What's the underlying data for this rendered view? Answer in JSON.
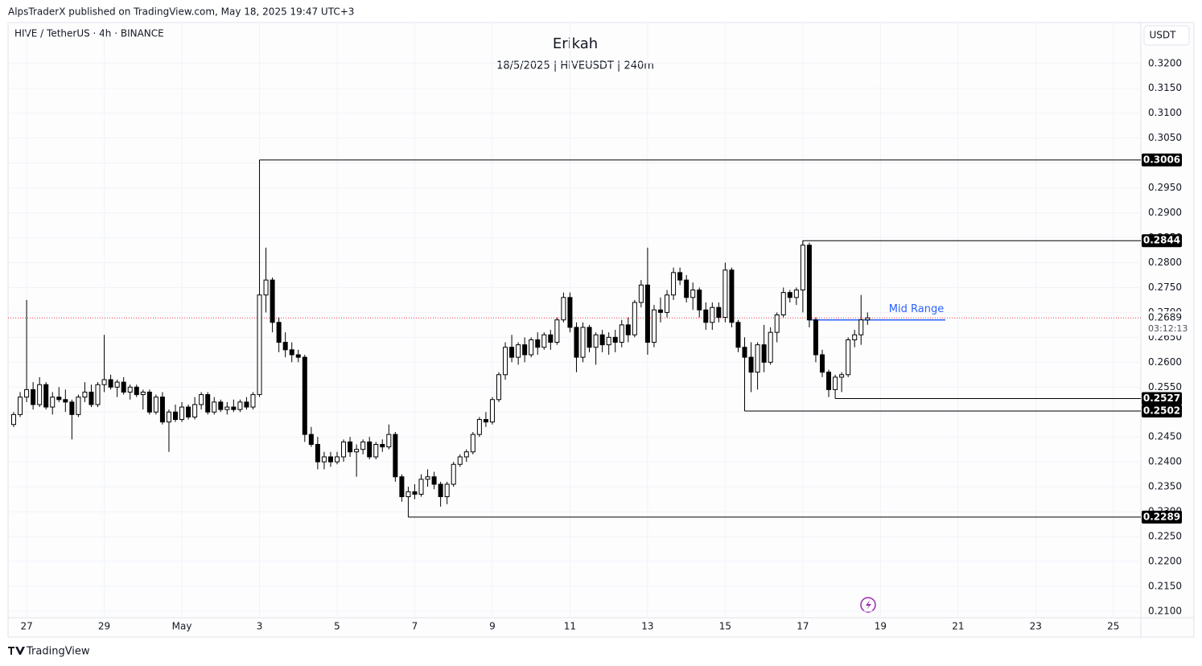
{
  "header": {
    "publisher": "AlpsTraderX published on TradingView.com, May 18, 2025 19:47 UTC+3",
    "brand": "TradingView"
  },
  "chart_data": {
    "type": "candlestick",
    "symbol": "HIVE / TetherUS · 4h · BINANCE",
    "title": "Erikah",
    "subtitle": "18/5/2025 | HIVEUSDT | 240m",
    "currency": "USDT",
    "up_color": "#ffffff",
    "down_color": "#000000",
    "outline_color": "#000000",
    "open": [
      0.2475,
      0.2495,
      0.253,
      0.2545,
      0.2515,
      0.2555,
      0.251,
      0.253,
      0.2525,
      0.252,
      0.2495,
      0.253,
      0.254,
      0.2515,
      0.2555,
      0.2565,
      0.255,
      0.256,
      0.254,
      0.255,
      0.2535,
      0.254,
      0.25,
      0.253,
      0.248,
      0.25,
      0.2485,
      0.251,
      0.249,
      0.2515,
      0.2535,
      0.25,
      0.252,
      0.2505,
      0.251,
      0.2505,
      0.252,
      0.251,
      0.2535,
      0.2735,
      0.2765,
      0.268,
      0.264,
      0.2625,
      0.2615,
      0.261,
      0.2455,
      0.2435,
      0.24,
      0.241,
      0.24,
      0.241,
      0.244,
      0.242,
      0.2425,
      0.244,
      0.241,
      0.2435,
      0.243,
      0.2455,
      0.237,
      0.233,
      0.234,
      0.2335,
      0.2365,
      0.237,
      0.2355,
      0.233,
      0.2355,
      0.2395,
      0.241,
      0.242,
      0.2455,
      0.2485,
      0.248,
      0.2525,
      0.2575,
      0.263,
      0.261,
      0.2635,
      0.2615,
      0.2645,
      0.263,
      0.2655,
      0.264,
      0.2685,
      0.273,
      0.267,
      0.261,
      0.267,
      0.263,
      0.2655,
      0.2635,
      0.265,
      0.264,
      0.2675,
      0.2655,
      0.272,
      0.2755,
      0.264,
      0.2705,
      0.27,
      0.2735,
      0.278,
      0.2765,
      0.273,
      0.2745,
      0.2705,
      0.268,
      0.271,
      0.269,
      0.2785,
      0.268,
      0.263,
      0.261,
      0.258,
      0.2635,
      0.26,
      0.266,
      0.2695,
      0.274,
      0.273,
      0.2745,
      0.2835,
      0.2685,
      0.2615,
      0.258,
      0.2545,
      0.257,
      0.2575,
      0.2645,
      0.2655,
      0.2685
    ],
    "high": [
      0.25,
      0.254,
      0.2725,
      0.256,
      0.257,
      0.256,
      0.254,
      0.255,
      0.2545,
      0.2525,
      0.2535,
      0.256,
      0.2555,
      0.256,
      0.2655,
      0.2575,
      0.2565,
      0.257,
      0.2555,
      0.2555,
      0.2545,
      0.2545,
      0.2535,
      0.254,
      0.2505,
      0.2515,
      0.252,
      0.2515,
      0.253,
      0.254,
      0.254,
      0.253,
      0.2525,
      0.252,
      0.2525,
      0.2525,
      0.253,
      0.254,
      0.3006,
      0.283,
      0.277,
      0.269,
      0.266,
      0.264,
      0.2625,
      0.2615,
      0.247,
      0.245,
      0.242,
      0.242,
      0.242,
      0.2445,
      0.245,
      0.2435,
      0.2445,
      0.245,
      0.244,
      0.2445,
      0.2475,
      0.246,
      0.2375,
      0.235,
      0.2355,
      0.2375,
      0.2385,
      0.238,
      0.236,
      0.236,
      0.24,
      0.2415,
      0.2425,
      0.246,
      0.249,
      0.25,
      0.253,
      0.258,
      0.264,
      0.2655,
      0.264,
      0.265,
      0.265,
      0.266,
      0.266,
      0.2665,
      0.269,
      0.274,
      0.274,
      0.268,
      0.268,
      0.2675,
      0.266,
      0.2665,
      0.266,
      0.2665,
      0.2685,
      0.269,
      0.2725,
      0.2765,
      0.283,
      0.2715,
      0.273,
      0.2745,
      0.279,
      0.279,
      0.2775,
      0.276,
      0.275,
      0.272,
      0.272,
      0.272,
      0.28,
      0.279,
      0.2685,
      0.265,
      0.264,
      0.264,
      0.2675,
      0.267,
      0.27,
      0.275,
      0.2745,
      0.275,
      0.2844,
      0.284,
      0.269,
      0.2625,
      0.2585,
      0.2575,
      0.258,
      0.265,
      0.2665,
      0.2735,
      0.27
    ],
    "low": [
      0.247,
      0.249,
      0.252,
      0.2505,
      0.251,
      0.2505,
      0.2495,
      0.252,
      0.25,
      0.2445,
      0.249,
      0.252,
      0.251,
      0.251,
      0.254,
      0.2545,
      0.253,
      0.2535,
      0.2525,
      0.253,
      0.2505,
      0.2495,
      0.2495,
      0.2475,
      0.242,
      0.248,
      0.248,
      0.2485,
      0.2485,
      0.2505,
      0.2495,
      0.2495,
      0.25,
      0.2495,
      0.25,
      0.25,
      0.2505,
      0.2505,
      0.253,
      0.27,
      0.266,
      0.262,
      0.261,
      0.26,
      0.26,
      0.244,
      0.243,
      0.2385,
      0.2385,
      0.239,
      0.2395,
      0.24,
      0.241,
      0.237,
      0.2415,
      0.2405,
      0.2405,
      0.242,
      0.2425,
      0.236,
      0.232,
      0.2289,
      0.2325,
      0.233,
      0.235,
      0.2345,
      0.231,
      0.2315,
      0.235,
      0.239,
      0.24,
      0.2415,
      0.245,
      0.247,
      0.2475,
      0.252,
      0.2565,
      0.26,
      0.2595,
      0.26,
      0.261,
      0.2615,
      0.2625,
      0.2625,
      0.2635,
      0.268,
      0.266,
      0.258,
      0.26,
      0.262,
      0.2595,
      0.262,
      0.2615,
      0.262,
      0.263,
      0.264,
      0.265,
      0.271,
      0.2615,
      0.263,
      0.268,
      0.269,
      0.2725,
      0.2755,
      0.272,
      0.2705,
      0.269,
      0.2665,
      0.2665,
      0.268,
      0.268,
      0.267,
      0.262,
      0.2502,
      0.254,
      0.2545,
      0.258,
      0.2595,
      0.264,
      0.269,
      0.272,
      0.2715,
      0.27,
      0.267,
      0.26,
      0.257,
      0.253,
      0.2527,
      0.254,
      0.257,
      0.263,
      0.2635,
      0.2675
    ],
    "close": [
      0.2495,
      0.253,
      0.2545,
      0.2515,
      0.2555,
      0.251,
      0.253,
      0.2525,
      0.252,
      0.2495,
      0.253,
      0.254,
      0.2515,
      0.2555,
      0.2565,
      0.255,
      0.256,
      0.254,
      0.255,
      0.2535,
      0.254,
      0.25,
      0.253,
      0.248,
      0.25,
      0.2485,
      0.251,
      0.249,
      0.2515,
      0.2535,
      0.25,
      0.252,
      0.2505,
      0.251,
      0.2505,
      0.252,
      0.251,
      0.2535,
      0.2735,
      0.2765,
      0.268,
      0.264,
      0.2625,
      0.2615,
      0.261,
      0.2455,
      0.2435,
      0.24,
      0.241,
      0.24,
      0.241,
      0.244,
      0.242,
      0.2425,
      0.244,
      0.241,
      0.2435,
      0.243,
      0.2455,
      0.237,
      0.233,
      0.234,
      0.2335,
      0.2365,
      0.237,
      0.2355,
      0.233,
      0.2355,
      0.2395,
      0.241,
      0.242,
      0.2455,
      0.2485,
      0.248,
      0.2525,
      0.2575,
      0.263,
      0.261,
      0.2635,
      0.2615,
      0.2645,
      0.263,
      0.2655,
      0.264,
      0.2685,
      0.273,
      0.267,
      0.261,
      0.267,
      0.263,
      0.2655,
      0.2635,
      0.265,
      0.264,
      0.2675,
      0.2655,
      0.272,
      0.2755,
      0.264,
      0.2705,
      0.27,
      0.2735,
      0.278,
      0.2765,
      0.273,
      0.2745,
      0.2705,
      0.268,
      0.271,
      0.269,
      0.2785,
      0.268,
      0.263,
      0.261,
      0.258,
      0.2635,
      0.26,
      0.266,
      0.2695,
      0.274,
      0.273,
      0.2745,
      0.2835,
      0.2685,
      0.2615,
      0.258,
      0.2545,
      0.257,
      0.2575,
      0.2645,
      0.2655,
      0.2685,
      0.2689
    ],
    "xticks": [
      {
        "value": 2,
        "label": "27"
      },
      {
        "value": 14,
        "label": "29"
      },
      {
        "value": 26,
        "label": "May"
      },
      {
        "value": 38,
        "label": "3"
      },
      {
        "value": 50,
        "label": "5"
      },
      {
        "value": 62,
        "label": "7"
      },
      {
        "value": 74,
        "label": "9"
      },
      {
        "value": 86,
        "label": "11"
      },
      {
        "value": 98,
        "label": "13"
      },
      {
        "value": 110,
        "label": "15"
      },
      {
        "value": 122,
        "label": "17"
      },
      {
        "value": 134,
        "label": "19"
      },
      {
        "value": 146,
        "label": "21"
      },
      {
        "value": 158,
        "label": "23"
      },
      {
        "value": 170,
        "label": "25"
      }
    ],
    "ylim": [
      0.2087,
      0.3282
    ],
    "yticks": [
      {
        "value": 0.21,
        "label": "0.2100"
      },
      {
        "value": 0.215,
        "label": "0.2150"
      },
      {
        "value": 0.22,
        "label": "0.2200"
      },
      {
        "value": 0.225,
        "label": "0.2250"
      },
      {
        "value": 0.23,
        "label": "0.2300"
      },
      {
        "value": 0.235,
        "label": "0.2350"
      },
      {
        "value": 0.24,
        "label": "0.2400"
      },
      {
        "value": 0.245,
        "label": "0.2450"
      },
      {
        "value": 0.25,
        "label": "0.2500"
      },
      {
        "value": 0.255,
        "label": "0.2550"
      },
      {
        "value": 0.26,
        "label": "0.2600"
      },
      {
        "value": 0.265,
        "label": "0.2650"
      },
      {
        "value": 0.27,
        "label": "0.2700"
      },
      {
        "value": 0.275,
        "label": "0.2750"
      },
      {
        "value": 0.28,
        "label": "0.2800"
      },
      {
        "value": 0.285,
        "label": "0.2850"
      },
      {
        "value": 0.29,
        "label": "0.2900"
      },
      {
        "value": 0.295,
        "label": "0.2950"
      },
      {
        "value": 0.3,
        "label": "0.3000"
      },
      {
        "value": 0.305,
        "label": "0.3050"
      },
      {
        "value": 0.31,
        "label": "0.3100"
      },
      {
        "value": 0.315,
        "label": "0.3150"
      },
      {
        "value": 0.32,
        "label": "0.3200"
      }
    ],
    "grid": true,
    "levels": [
      0.3006,
      0.2844,
      0.2527,
      0.2502,
      0.2289
    ],
    "mid_range": {
      "text": "Mid Range",
      "value": 0.2685,
      "color": "#2962ff"
    },
    "last_price": {
      "value": 0.2689,
      "countdown": "03:12:13",
      "color": "#f23645"
    }
  }
}
